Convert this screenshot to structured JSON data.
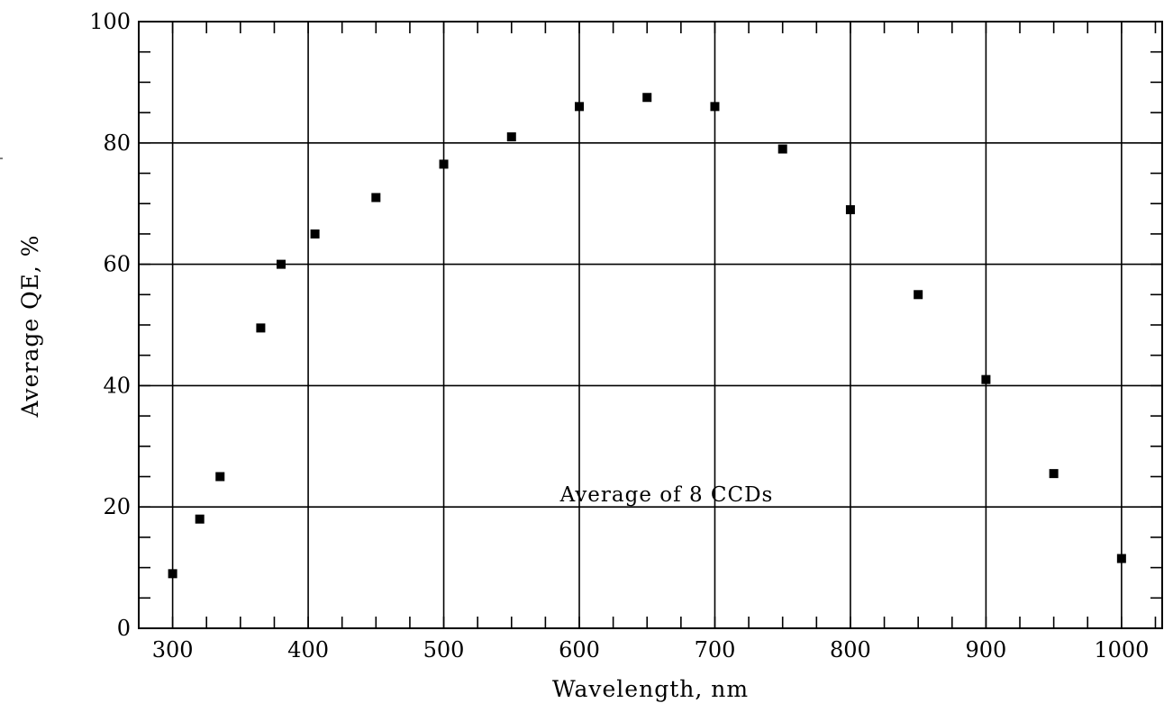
{
  "chart_data": {
    "type": "scatter",
    "title": "",
    "xlabel": "Wavelength, nm",
    "ylabel": "Average QE, %",
    "xlim": [
      275,
      1030
    ],
    "ylim": [
      0,
      100
    ],
    "x_ticks": [
      300,
      400,
      500,
      600,
      700,
      800,
      900,
      1000
    ],
    "x_tick_labels": [
      "300",
      "400",
      "500",
      "600",
      "700",
      "800",
      "900",
      "1000"
    ],
    "y_ticks": [
      0,
      20,
      40,
      60,
      80,
      100
    ],
    "y_tick_labels": [
      "0",
      "20",
      "40",
      "60",
      "80",
      "100"
    ],
    "grid": true,
    "annotation": "Average of 8 CCDs",
    "marker_color": "#000000",
    "series": [
      {
        "x": [
          300,
          320,
          335,
          365,
          380,
          405,
          450,
          500,
          550,
          600,
          650,
          700,
          750,
          800,
          850,
          900,
          950,
          1000
        ],
        "y": [
          9,
          18,
          25,
          49.5,
          60,
          65,
          71,
          76.5,
          81,
          86,
          87.5,
          86,
          79,
          69,
          55,
          41,
          25.5,
          11.5
        ]
      }
    ]
  }
}
